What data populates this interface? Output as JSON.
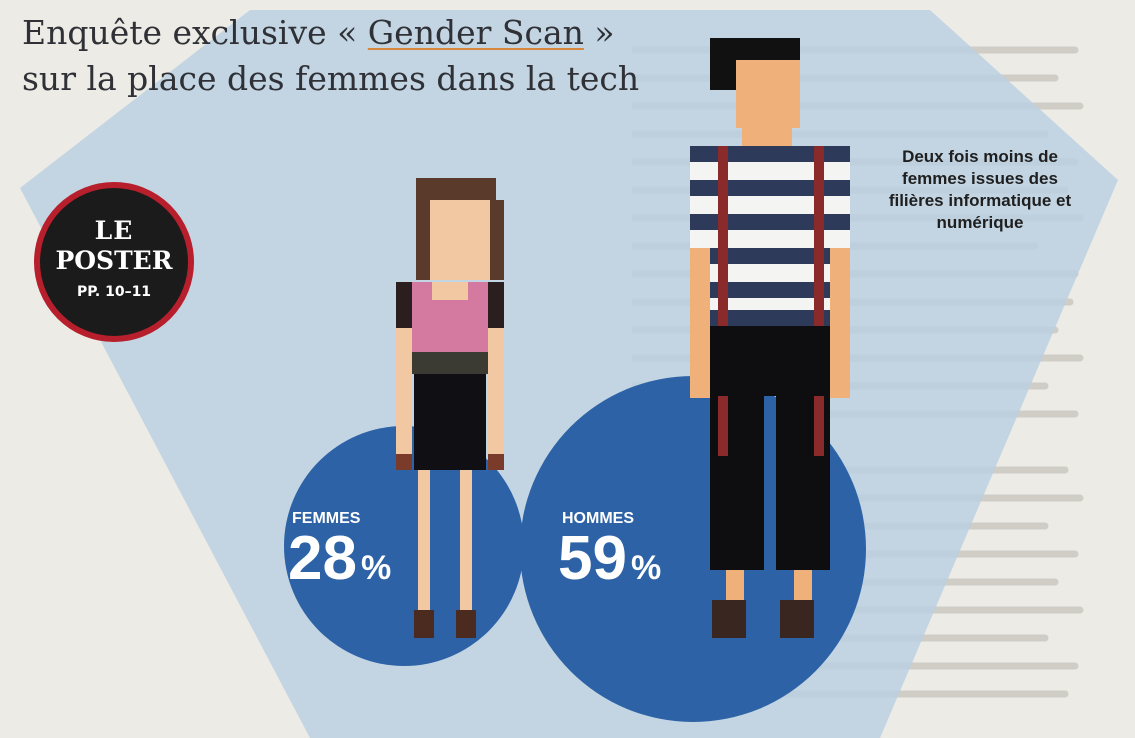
{
  "title": {
    "prefix": "Enquête exclusive « ",
    "highlight": "Gender Scan",
    "suffix": " »",
    "line2": "sur la place des femmes dans la tech"
  },
  "badge": {
    "line1": "LE",
    "line2": "POSTER",
    "pages": "PP. 10–11"
  },
  "stats": [
    {
      "label": "FEMMES",
      "value": "28",
      "unit": "%"
    },
    {
      "label": "HOMMES",
      "value": "59",
      "unit": "%"
    }
  ],
  "note": "Deux fois moins de femmes issues des filières informatique et numérique",
  "colors": {
    "circle": "#2d63a6",
    "badge_ring": "#b81f2c",
    "highlight_underline": "#d8863a"
  }
}
